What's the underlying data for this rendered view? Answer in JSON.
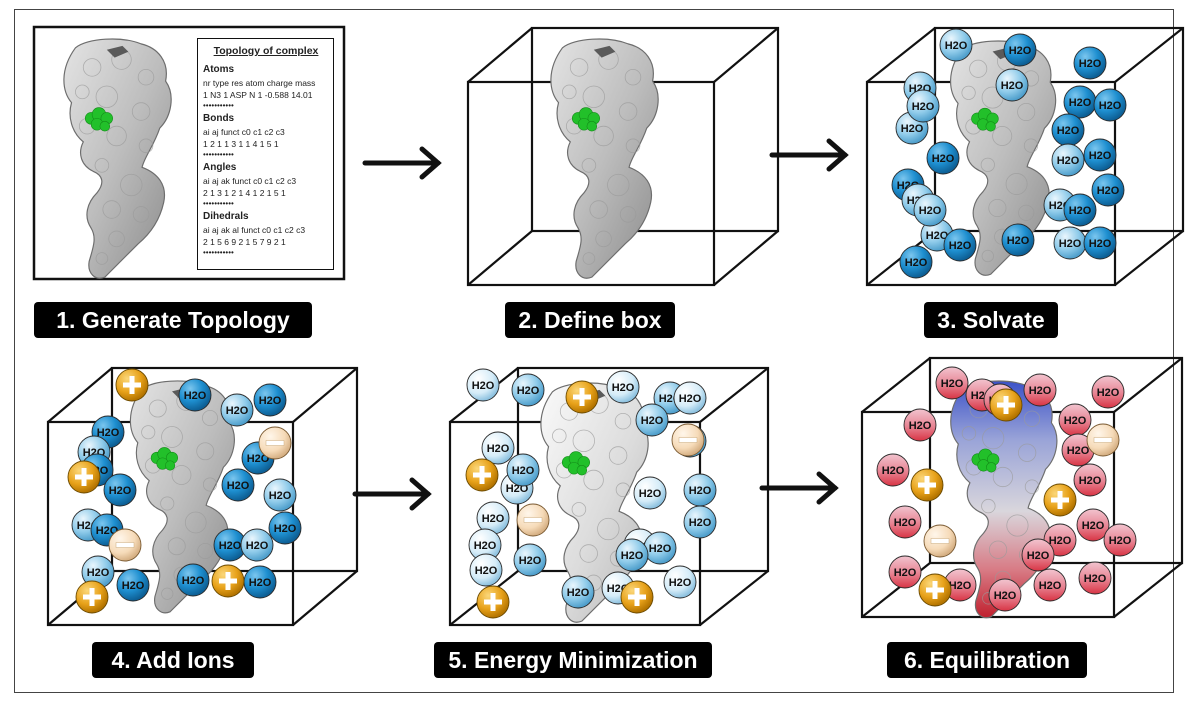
{
  "steps": [
    {
      "label": "1. Generate Topology"
    },
    {
      "label": "2. Define box"
    },
    {
      "label": "3. Solvate"
    },
    {
      "label": "4. Add Ions"
    },
    {
      "label": "5. Energy Minimization"
    },
    {
      "label": "6. Equilibration"
    }
  ],
  "topology": {
    "title": "Topology of complex",
    "sections": [
      {
        "heading": "Atoms",
        "lines": [
          "nr  type res atom charge mass",
          "1 N3 1 ASP N 1 -0.588 14.01"
        ]
      },
      {
        "heading": "Bonds",
        "lines": [
          "ai   aj   funct   c0  c1  c2  c3",
          "1  2  1  1  3  1  1  4  1  5  1"
        ]
      },
      {
        "heading": "Angles",
        "lines": [
          "ai  aj  ak funct   c0  c1  c2  c3",
          "2  1  3  1  2  1  4  1  2  1  5  1"
        ]
      },
      {
        "heading": "Dihedrals",
        "lines": [
          "ai  aj  ak al funct  c0 c1 c2 c3",
          "2  1  5  6  9  2  1  5  7  9  2  1"
        ]
      }
    ],
    "separator": "•••••••••••"
  },
  "molecule_labels": {
    "water": "H2O",
    "cation": "+",
    "anion": "−"
  },
  "colors": {
    "water_dark": "#1e8fd0",
    "water_light": "#8fcbea",
    "water_pale": "#d5ecf8",
    "water_red": "#e04a56",
    "cation": "#e8a21a",
    "anion": "#f6dbb9",
    "ligand": "#22c02a",
    "label_bg": "#000000"
  }
}
